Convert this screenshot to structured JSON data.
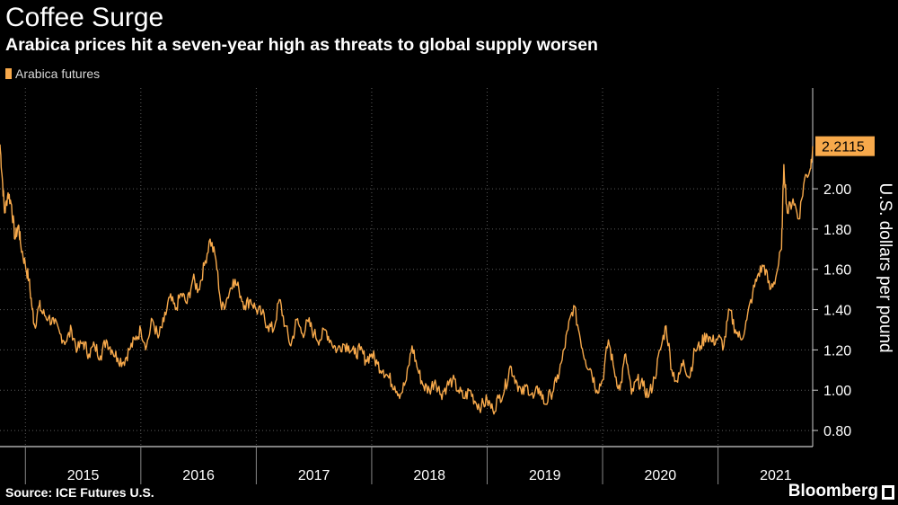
{
  "title": "Coffee Surge",
  "subtitle": "Arabica prices hit a seven-year high as threats to global supply worsen",
  "legend_label": "Arabica futures",
  "source": "Source: ICE Futures U.S.",
  "brand": "Bloomberg",
  "colors": {
    "series": "#f7a94b",
    "background": "#000000",
    "grid": "#5a5a5a",
    "text": "#ffffff"
  },
  "chart_data": {
    "type": "line",
    "title": "Coffee Surge",
    "subtitle": "Arabica prices hit a seven-year high as threats to global supply worsen",
    "ylabel": "U.S. dollars per pound",
    "xlabel": "",
    "ylim": [
      0.72,
      2.5
    ],
    "xlim": [
      2014.78,
      2021.82
    ],
    "yticks": [
      0.8,
      1.0,
      1.2,
      1.4,
      1.6,
      1.8,
      2.0
    ],
    "ytick_labels": [
      "0.80",
      "1.00",
      "1.20",
      "1.40",
      "1.60",
      "1.80",
      "2.00"
    ],
    "xtick_labels": [
      "2015",
      "2016",
      "2017",
      "2018",
      "2019",
      "2020",
      "2021"
    ],
    "grid": "horizontal dotted",
    "legend": "top-left",
    "last_value_label": "2.2115",
    "series": [
      {
        "name": "Arabica futures",
        "x": [
          2014.78,
          2014.8,
          2014.82,
          2014.85,
          2014.88,
          2014.91,
          2014.94,
          2014.96,
          2015.0,
          2015.03,
          2015.06,
          2015.08,
          2015.12,
          2015.15,
          2015.2,
          2015.25,
          2015.3,
          2015.35,
          2015.4,
          2015.45,
          2015.5,
          2015.55,
          2015.6,
          2015.65,
          2015.7,
          2015.75,
          2015.8,
          2015.85,
          2015.9,
          2015.95,
          2016.0,
          2016.05,
          2016.1,
          2016.15,
          2016.2,
          2016.25,
          2016.3,
          2016.35,
          2016.4,
          2016.45,
          2016.5,
          2016.55,
          2016.6,
          2016.65,
          2016.7,
          2016.75,
          2016.8,
          2016.85,
          2016.9,
          2016.95,
          2017.0,
          2017.05,
          2017.1,
          2017.15,
          2017.2,
          2017.25,
          2017.3,
          2017.35,
          2017.4,
          2017.45,
          2017.5,
          2017.55,
          2017.6,
          2017.65,
          2017.7,
          2017.75,
          2017.8,
          2017.85,
          2017.9,
          2017.95,
          2018.0,
          2018.05,
          2018.1,
          2018.15,
          2018.2,
          2018.25,
          2018.3,
          2018.35,
          2018.4,
          2018.45,
          2018.5,
          2018.55,
          2018.6,
          2018.65,
          2018.7,
          2018.75,
          2018.8,
          2018.85,
          2018.9,
          2018.95,
          2019.0,
          2019.05,
          2019.1,
          2019.15,
          2019.2,
          2019.25,
          2019.3,
          2019.35,
          2019.4,
          2019.45,
          2019.5,
          2019.55,
          2019.6,
          2019.65,
          2019.7,
          2019.75,
          2019.8,
          2019.85,
          2019.9,
          2019.95,
          2020.0,
          2020.05,
          2020.1,
          2020.15,
          2020.2,
          2020.25,
          2020.3,
          2020.35,
          2020.4,
          2020.45,
          2020.5,
          2020.55,
          2020.6,
          2020.65,
          2020.7,
          2020.75,
          2020.8,
          2020.85,
          2020.9,
          2020.95,
          2021.0,
          2021.05,
          2021.1,
          2021.15,
          2021.2,
          2021.25,
          2021.3,
          2021.35,
          2021.4,
          2021.45,
          2021.5,
          2021.55,
          2021.57,
          2021.6,
          2021.65,
          2021.7,
          2021.75,
          2021.8,
          2021.82
        ],
        "values": [
          2.22,
          2.05,
          1.88,
          1.98,
          1.92,
          1.75,
          1.82,
          1.72,
          1.62,
          1.55,
          1.4,
          1.32,
          1.42,
          1.38,
          1.36,
          1.33,
          1.28,
          1.24,
          1.3,
          1.2,
          1.24,
          1.18,
          1.22,
          1.17,
          1.25,
          1.2,
          1.16,
          1.14,
          1.2,
          1.25,
          1.3,
          1.22,
          1.35,
          1.26,
          1.34,
          1.46,
          1.4,
          1.48,
          1.43,
          1.55,
          1.5,
          1.62,
          1.75,
          1.65,
          1.4,
          1.46,
          1.55,
          1.5,
          1.42,
          1.45,
          1.4,
          1.38,
          1.32,
          1.3,
          1.45,
          1.32,
          1.22,
          1.35,
          1.28,
          1.34,
          1.28,
          1.25,
          1.3,
          1.24,
          1.2,
          1.23,
          1.22,
          1.18,
          1.2,
          1.15,
          1.18,
          1.13,
          1.1,
          1.06,
          1.02,
          0.98,
          1.05,
          1.22,
          1.1,
          1.02,
          1.0,
          1.05,
          0.98,
          1.02,
          1.05,
          1.0,
          0.96,
          1.0,
          0.94,
          0.92,
          0.95,
          0.9,
          0.96,
          1.0,
          1.12,
          1.05,
          0.98,
          1.02,
          0.96,
          1.01,
          0.93,
          0.98,
          1.04,
          1.15,
          1.3,
          1.42,
          1.28,
          1.15,
          1.1,
          1.0,
          1.05,
          1.25,
          1.1,
          1.0,
          1.18,
          0.98,
          1.05,
          1.02,
          0.97,
          1.06,
          1.2,
          1.32,
          1.1,
          1.04,
          1.15,
          1.06,
          1.2,
          1.22,
          1.28,
          1.24,
          1.26,
          1.22,
          1.4,
          1.3,
          1.25,
          1.35,
          1.48,
          1.58,
          1.62,
          1.5,
          1.56,
          1.7,
          2.12,
          1.88,
          1.95,
          1.85,
          2.05,
          2.1,
          2.2115
        ]
      }
    ]
  }
}
